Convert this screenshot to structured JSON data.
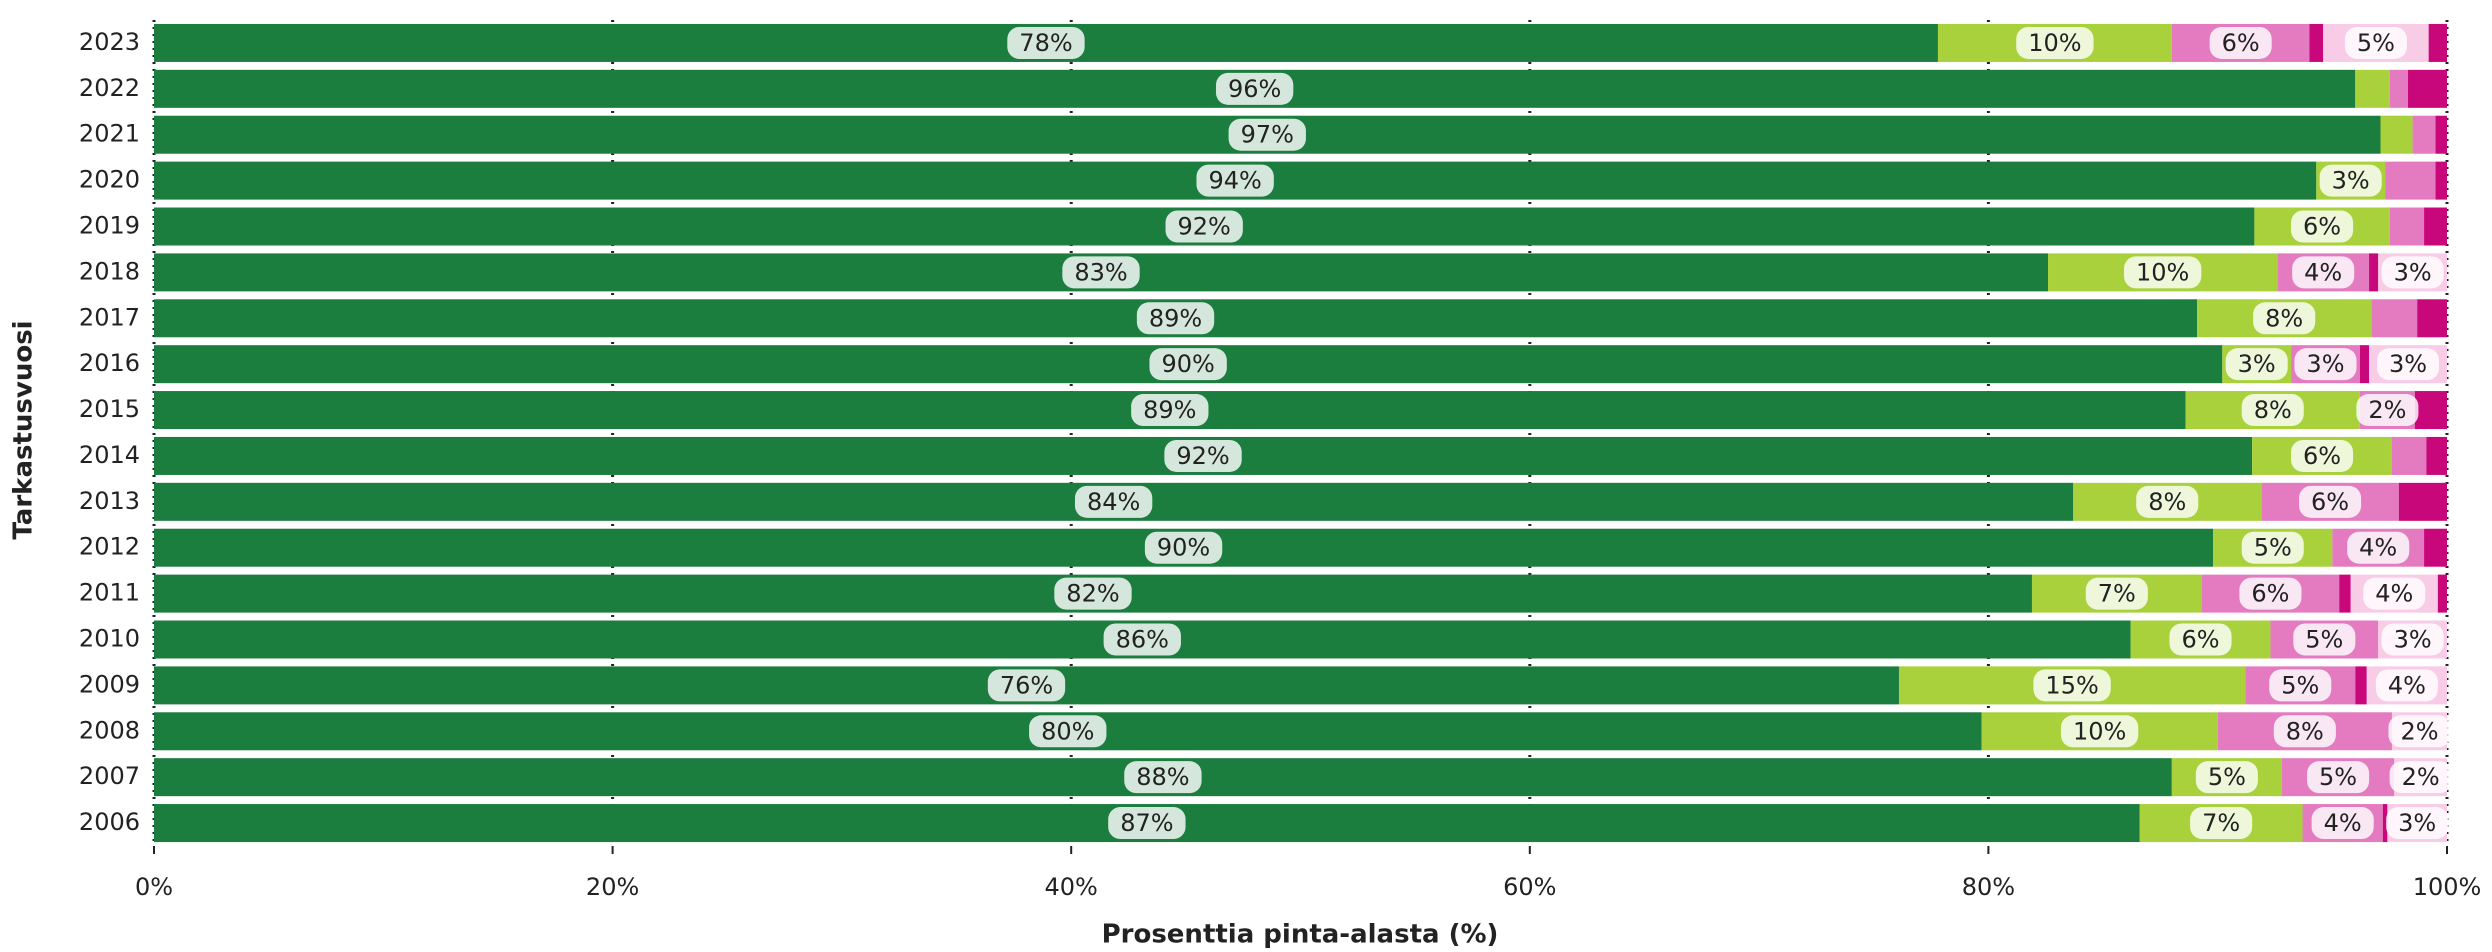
{
  "chart_data": {
    "type": "bar",
    "orientation": "horizontal",
    "stacked": true,
    "xlabel": "Prosenttia pinta-alasta (%)",
    "ylabel": "Tarkastusvuosi",
    "categories": [
      "2023",
      "2022",
      "2021",
      "2020",
      "2019",
      "2018",
      "2017",
      "2016",
      "2015",
      "2014",
      "2013",
      "2012",
      "2011",
      "2010",
      "2009",
      "2008",
      "2007",
      "2006"
    ],
    "xlim": [
      0,
      100
    ],
    "xticks": [
      {
        "value": 0,
        "label": "0%"
      },
      {
        "value": 20,
        "label": "20%"
      },
      {
        "value": 40,
        "label": "40%"
      },
      {
        "value": 60,
        "label": "60%"
      },
      {
        "value": 80,
        "label": "80%"
      },
      {
        "value": 100,
        "label": "100%"
      }
    ],
    "grid": true,
    "series": [
      {
        "color": "#1b7d3e",
        "values": [
          77.8,
          96,
          97.1,
          94.3,
          91.6,
          82.6,
          89.1,
          90.2,
          88.6,
          91.5,
          83.7,
          89.8,
          81.9,
          86.2,
          76.1,
          79.7,
          88.0,
          86.6
        ],
        "value_labels": [
          "78%",
          "96%",
          "97%",
          "94%",
          "92%",
          "83%",
          "89%",
          "90%",
          "89%",
          "92%",
          "84%",
          "90%",
          "82%",
          "86%",
          "76%",
          "80%",
          "88%",
          "87%"
        ]
      },
      {
        "color": "#a8d13b",
        "values": [
          10.2,
          1.5,
          1.4,
          3.0,
          5.9,
          10.0,
          7.6,
          3.0,
          7.6,
          6.1,
          8.2,
          5.2,
          7.4,
          6.1,
          15.1,
          10.3,
          4.8,
          7.1
        ],
        "value_labels": [
          "10%",
          null,
          null,
          "3%",
          "6%",
          "10%",
          "8%",
          "3%",
          "8%",
          "6%",
          "8%",
          "5%",
          "7%",
          "6%",
          "15%",
          "10%",
          "5%",
          "7%"
        ]
      },
      {
        "color": "#e47bc0",
        "values": [
          6.0,
          0.8,
          1.0,
          2.2,
          1.5,
          4.0,
          2.0,
          3.0,
          2.4,
          1.5,
          6.0,
          4.0,
          6.0,
          4.7,
          4.8,
          7.6,
          4.9,
          3.5
        ],
        "value_labels": [
          "6%",
          null,
          null,
          null,
          null,
          "4%",
          null,
          "3%",
          "2%",
          null,
          "6%",
          "4%",
          "6%",
          "5%",
          "5%",
          "8%",
          "5%",
          "4%"
        ]
      },
      {
        "color": "#c8077a",
        "values": [
          0.6,
          0,
          0,
          0,
          0,
          0.4,
          0,
          0.4,
          0,
          0,
          0,
          0,
          0.5,
          0,
          0.5,
          0,
          0,
          0.2
        ]
      },
      {
        "color": "#f8cbe6",
        "values": [
          4.6,
          0,
          0,
          0,
          0,
          3.0,
          0,
          3.4,
          0,
          0,
          0,
          0,
          3.8,
          3.0,
          3.5,
          2.4,
          2.3,
          2.6
        ],
        "value_labels": [
          "5%",
          null,
          null,
          null,
          null,
          "3%",
          null,
          "3%",
          null,
          null,
          null,
          null,
          "4%",
          "3%",
          "4%",
          "2%",
          "2%",
          "3%"
        ]
      },
      {
        "color": "#c8077a",
        "values": [
          0.8,
          1.7,
          0.5,
          0.5,
          1.0,
          0,
          1.3,
          0,
          1.4,
          0.9,
          2.1,
          1.0,
          0.4,
          0,
          0,
          0,
          0,
          0
        ]
      }
    ]
  }
}
